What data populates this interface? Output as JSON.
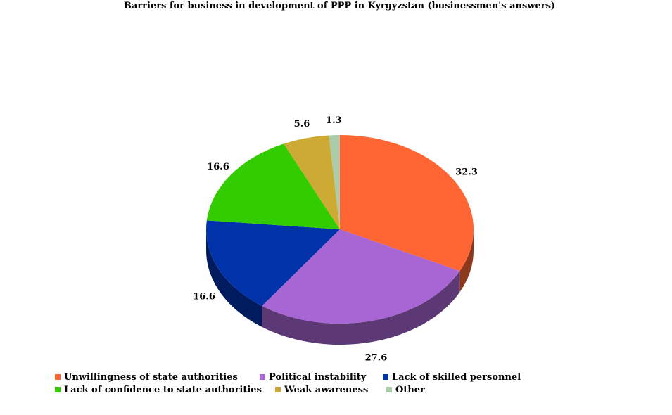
{
  "chart_data": {
    "type": "pie",
    "title": "Barriers for business in development of PPP in Kyrgyzstan (businessmen's answers)",
    "categories": [
      "Unwillingness of state authorities",
      "Political instability",
      "Lack of skilled personnel",
      "Lack of confidence to state authorities",
      "Weak awareness",
      "Other"
    ],
    "values": [
      32.3,
      27.6,
      16.6,
      16.6,
      5.6,
      1.3
    ],
    "value_labels": [
      "32.3",
      "27.6",
      "16.6",
      "16.6",
      "5.6",
      "1.3"
    ],
    "colors": [
      "#ff6633",
      "#a866d4",
      "#0033aa",
      "#33cc00",
      "#ccaa33",
      "#aaccaa"
    ],
    "legend_position": "bottom",
    "style": "3d"
  }
}
